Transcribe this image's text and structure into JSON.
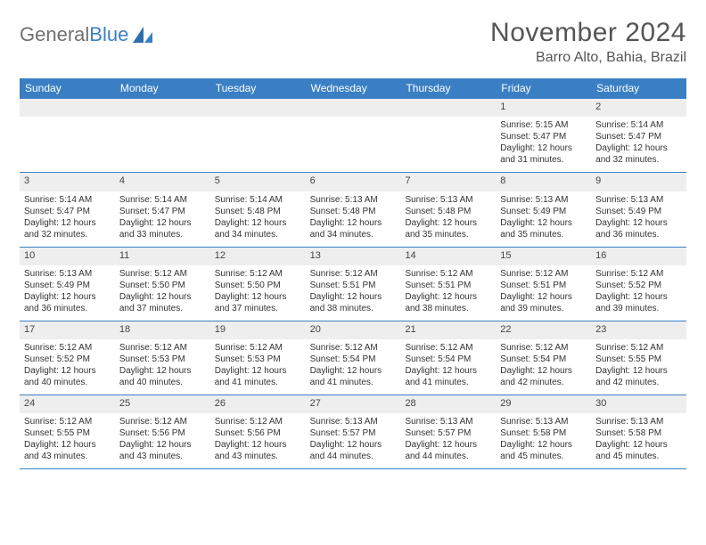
{
  "brand": {
    "general": "General",
    "blue": "Blue"
  },
  "title": "November 2024",
  "location": "Barro Alto, Bahia, Brazil",
  "colors": {
    "header_bar": "#3a7fc4",
    "row_divider": "#3a7fc4",
    "daynum_bg": "#eeeeee",
    "page_bg": "#ffffff",
    "text": "#333333",
    "title_text": "#555555"
  },
  "weekdays": [
    "Sunday",
    "Monday",
    "Tuesday",
    "Wednesday",
    "Thursday",
    "Friday",
    "Saturday"
  ],
  "weeks": [
    [
      {
        "n": "",
        "sr": "",
        "ss": "",
        "dl": ""
      },
      {
        "n": "",
        "sr": "",
        "ss": "",
        "dl": ""
      },
      {
        "n": "",
        "sr": "",
        "ss": "",
        "dl": ""
      },
      {
        "n": "",
        "sr": "",
        "ss": "",
        "dl": ""
      },
      {
        "n": "",
        "sr": "",
        "ss": "",
        "dl": ""
      },
      {
        "n": "1",
        "sr": "Sunrise: 5:15 AM",
        "ss": "Sunset: 5:47 PM",
        "dl": "Daylight: 12 hours and 31 minutes."
      },
      {
        "n": "2",
        "sr": "Sunrise: 5:14 AM",
        "ss": "Sunset: 5:47 PM",
        "dl": "Daylight: 12 hours and 32 minutes."
      }
    ],
    [
      {
        "n": "3",
        "sr": "Sunrise: 5:14 AM",
        "ss": "Sunset: 5:47 PM",
        "dl": "Daylight: 12 hours and 32 minutes."
      },
      {
        "n": "4",
        "sr": "Sunrise: 5:14 AM",
        "ss": "Sunset: 5:47 PM",
        "dl": "Daylight: 12 hours and 33 minutes."
      },
      {
        "n": "5",
        "sr": "Sunrise: 5:14 AM",
        "ss": "Sunset: 5:48 PM",
        "dl": "Daylight: 12 hours and 34 minutes."
      },
      {
        "n": "6",
        "sr": "Sunrise: 5:13 AM",
        "ss": "Sunset: 5:48 PM",
        "dl": "Daylight: 12 hours and 34 minutes."
      },
      {
        "n": "7",
        "sr": "Sunrise: 5:13 AM",
        "ss": "Sunset: 5:48 PM",
        "dl": "Daylight: 12 hours and 35 minutes."
      },
      {
        "n": "8",
        "sr": "Sunrise: 5:13 AM",
        "ss": "Sunset: 5:49 PM",
        "dl": "Daylight: 12 hours and 35 minutes."
      },
      {
        "n": "9",
        "sr": "Sunrise: 5:13 AM",
        "ss": "Sunset: 5:49 PM",
        "dl": "Daylight: 12 hours and 36 minutes."
      }
    ],
    [
      {
        "n": "10",
        "sr": "Sunrise: 5:13 AM",
        "ss": "Sunset: 5:49 PM",
        "dl": "Daylight: 12 hours and 36 minutes."
      },
      {
        "n": "11",
        "sr": "Sunrise: 5:12 AM",
        "ss": "Sunset: 5:50 PM",
        "dl": "Daylight: 12 hours and 37 minutes."
      },
      {
        "n": "12",
        "sr": "Sunrise: 5:12 AM",
        "ss": "Sunset: 5:50 PM",
        "dl": "Daylight: 12 hours and 37 minutes."
      },
      {
        "n": "13",
        "sr": "Sunrise: 5:12 AM",
        "ss": "Sunset: 5:51 PM",
        "dl": "Daylight: 12 hours and 38 minutes."
      },
      {
        "n": "14",
        "sr": "Sunrise: 5:12 AM",
        "ss": "Sunset: 5:51 PM",
        "dl": "Daylight: 12 hours and 38 minutes."
      },
      {
        "n": "15",
        "sr": "Sunrise: 5:12 AM",
        "ss": "Sunset: 5:51 PM",
        "dl": "Daylight: 12 hours and 39 minutes."
      },
      {
        "n": "16",
        "sr": "Sunrise: 5:12 AM",
        "ss": "Sunset: 5:52 PM",
        "dl": "Daylight: 12 hours and 39 minutes."
      }
    ],
    [
      {
        "n": "17",
        "sr": "Sunrise: 5:12 AM",
        "ss": "Sunset: 5:52 PM",
        "dl": "Daylight: 12 hours and 40 minutes."
      },
      {
        "n": "18",
        "sr": "Sunrise: 5:12 AM",
        "ss": "Sunset: 5:53 PM",
        "dl": "Daylight: 12 hours and 40 minutes."
      },
      {
        "n": "19",
        "sr": "Sunrise: 5:12 AM",
        "ss": "Sunset: 5:53 PM",
        "dl": "Daylight: 12 hours and 41 minutes."
      },
      {
        "n": "20",
        "sr": "Sunrise: 5:12 AM",
        "ss": "Sunset: 5:54 PM",
        "dl": "Daylight: 12 hours and 41 minutes."
      },
      {
        "n": "21",
        "sr": "Sunrise: 5:12 AM",
        "ss": "Sunset: 5:54 PM",
        "dl": "Daylight: 12 hours and 41 minutes."
      },
      {
        "n": "22",
        "sr": "Sunrise: 5:12 AM",
        "ss": "Sunset: 5:54 PM",
        "dl": "Daylight: 12 hours and 42 minutes."
      },
      {
        "n": "23",
        "sr": "Sunrise: 5:12 AM",
        "ss": "Sunset: 5:55 PM",
        "dl": "Daylight: 12 hours and 42 minutes."
      }
    ],
    [
      {
        "n": "24",
        "sr": "Sunrise: 5:12 AM",
        "ss": "Sunset: 5:55 PM",
        "dl": "Daylight: 12 hours and 43 minutes."
      },
      {
        "n": "25",
        "sr": "Sunrise: 5:12 AM",
        "ss": "Sunset: 5:56 PM",
        "dl": "Daylight: 12 hours and 43 minutes."
      },
      {
        "n": "26",
        "sr": "Sunrise: 5:12 AM",
        "ss": "Sunset: 5:56 PM",
        "dl": "Daylight: 12 hours and 43 minutes."
      },
      {
        "n": "27",
        "sr": "Sunrise: 5:13 AM",
        "ss": "Sunset: 5:57 PM",
        "dl": "Daylight: 12 hours and 44 minutes."
      },
      {
        "n": "28",
        "sr": "Sunrise: 5:13 AM",
        "ss": "Sunset: 5:57 PM",
        "dl": "Daylight: 12 hours and 44 minutes."
      },
      {
        "n": "29",
        "sr": "Sunrise: 5:13 AM",
        "ss": "Sunset: 5:58 PM",
        "dl": "Daylight: 12 hours and 45 minutes."
      },
      {
        "n": "30",
        "sr": "Sunrise: 5:13 AM",
        "ss": "Sunset: 5:58 PM",
        "dl": "Daylight: 12 hours and 45 minutes."
      }
    ]
  ]
}
